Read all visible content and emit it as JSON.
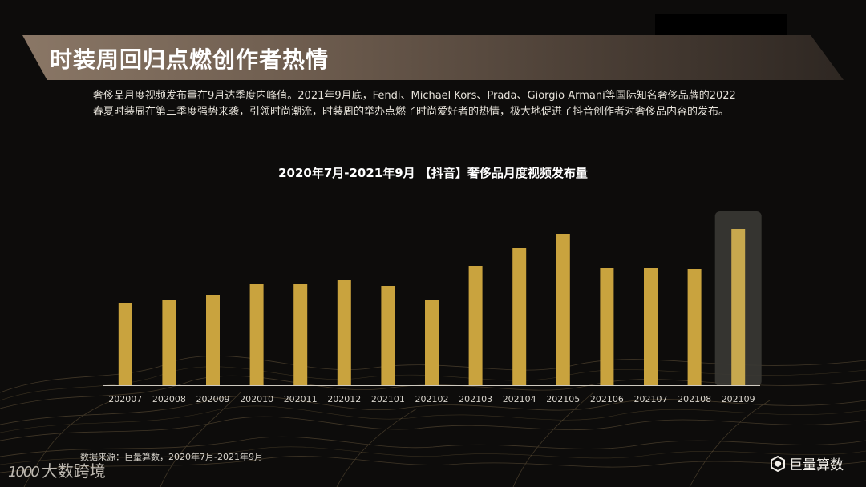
{
  "title": "时装周回归点燃创作者热情",
  "description": {
    "line1": "奢侈品月度视频发布量在9月达季度内峰值。2021年9月底，Fendi、Michael Kors、Prada、Giorgio Armani等国际知名奢侈品牌的2022",
    "line2": "春夏时装周在第三季度强势来袭，引领时尚潮流，时装周的举办点燃了时尚爱好者的热情，极大地促进了抖音创作者对奢侈品内容的发布。"
  },
  "chart_data": {
    "type": "bar",
    "title": "2020年7月-2021年9月 【抖音】奢侈品月度视频发布量",
    "categories": [
      "202007",
      "202008",
      "202009",
      "202010",
      "202011",
      "202012",
      "202101",
      "202102",
      "202103",
      "202104",
      "202105",
      "202106",
      "202107",
      "202108",
      "202109"
    ],
    "values": [
      103,
      107,
      113,
      126,
      126,
      131,
      124,
      107,
      149,
      172,
      189,
      147,
      147,
      145,
      195
    ],
    "ylim": [
      0,
      200
    ],
    "highlight_index": 14,
    "bar_color": "#c9a33e",
    "highlight_bar_color": "#c7a84e",
    "highlight_background": "#3a3834"
  },
  "source": "数据来源：巨量算数，2020年7月-2021年9月",
  "logo_left": {
    "mark": "1000",
    "text": "大数跨境"
  },
  "logo_right": {
    "text": "巨量算数",
    "icon": "juliang-logo-icon"
  }
}
